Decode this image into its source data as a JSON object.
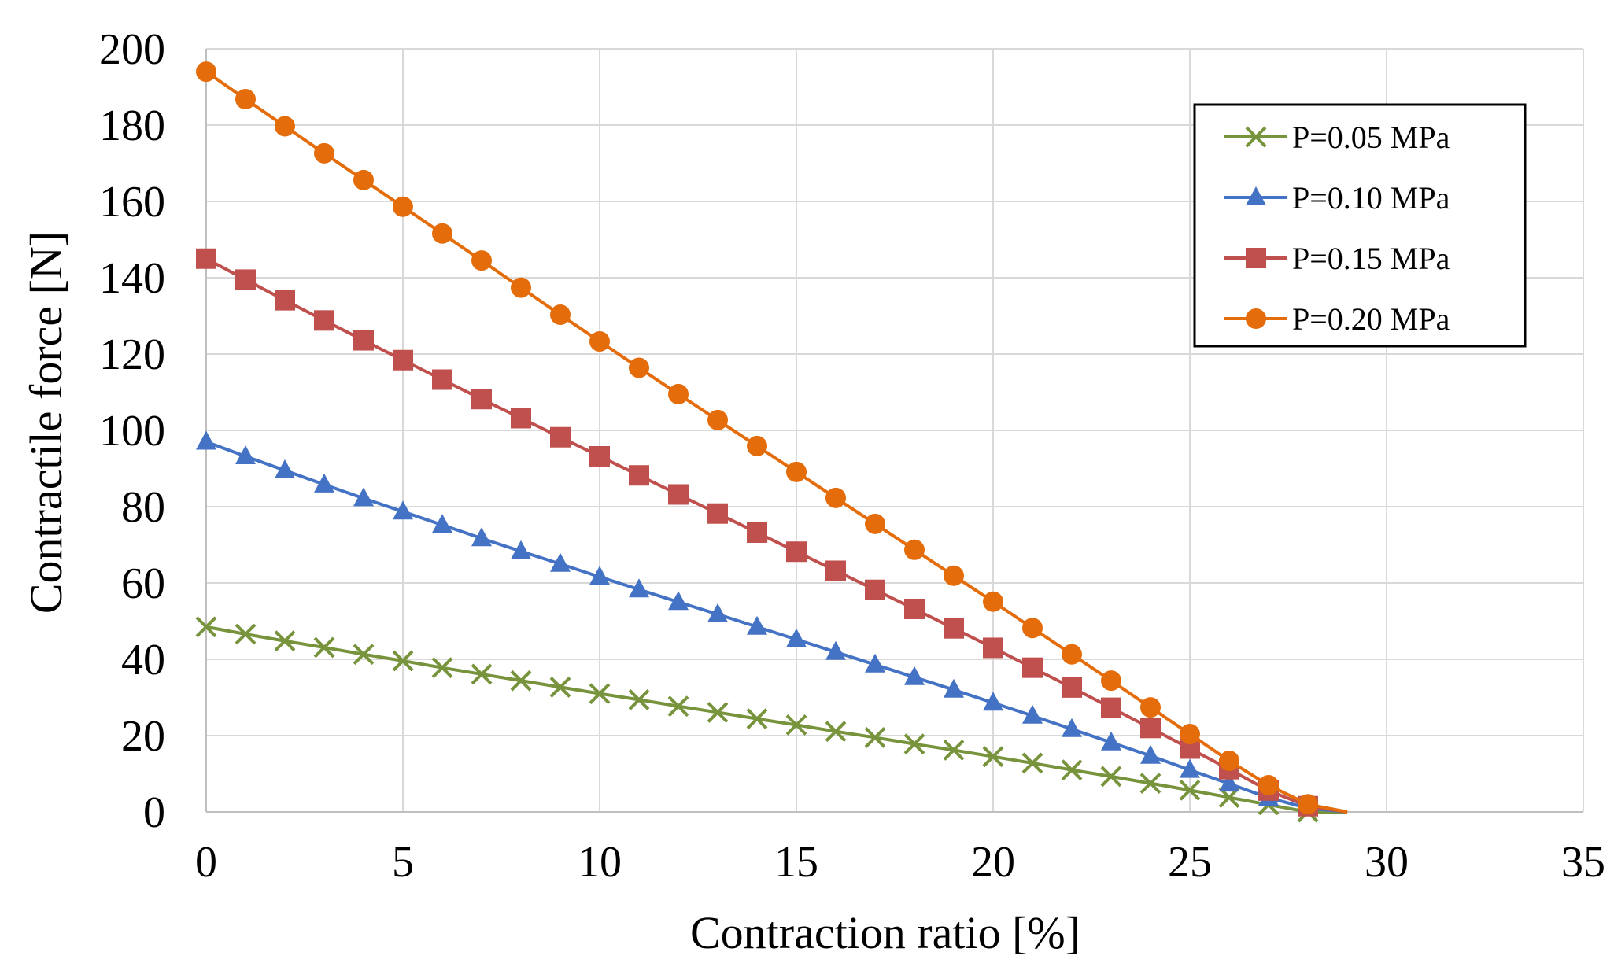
{
  "chart_data": {
    "type": "line",
    "title": "",
    "xlabel": "Contraction ratio [%]",
    "ylabel": "Contractile force [N]",
    "xlim": [
      0,
      35
    ],
    "ylim": [
      0,
      200
    ],
    "xticks": [
      0,
      5,
      10,
      15,
      20,
      25,
      30,
      35
    ],
    "yticks": [
      0,
      20,
      40,
      60,
      80,
      100,
      120,
      140,
      160,
      180,
      200
    ],
    "grid": true,
    "legend_position": "top-right",
    "series": [
      {
        "name": "P=0.05 MPa",
        "color": "#77933c",
        "marker": "x",
        "x": [
          0,
          1,
          2,
          3,
          4,
          5,
          6,
          7,
          8,
          9,
          10,
          11,
          12,
          13,
          14,
          15,
          16,
          17,
          18,
          19,
          20,
          21,
          22,
          23,
          24,
          25,
          26,
          27,
          28,
          29
        ],
        "values": [
          48.5,
          46.6,
          44.8,
          43.1,
          41.3,
          39.6,
          37.8,
          36.1,
          34.4,
          32.7,
          31.0,
          29.4,
          27.7,
          26.1,
          24.4,
          22.8,
          21.1,
          19.5,
          17.8,
          16.2,
          14.5,
          12.8,
          11.0,
          9.3,
          7.5,
          5.7,
          3.8,
          1.9,
          0.0,
          0.0
        ]
      },
      {
        "name": "P=0.10 MPa",
        "color": "#4472c4",
        "marker": "triangle",
        "x": [
          0,
          1,
          2,
          3,
          4,
          5,
          6,
          7,
          8,
          9,
          10,
          11,
          12,
          13,
          14,
          15,
          16,
          17,
          18,
          19,
          20,
          21,
          22,
          23,
          24,
          25,
          26,
          27,
          28,
          29
        ],
        "values": [
          97.0,
          93.2,
          89.5,
          85.8,
          82.2,
          78.7,
          75.2,
          71.7,
          68.3,
          65.0,
          61.6,
          58.3,
          55.0,
          51.8,
          48.5,
          45.2,
          41.9,
          38.6,
          35.3,
          32.0,
          28.6,
          25.2,
          21.7,
          18.2,
          14.7,
          11.0,
          7.4,
          3.7,
          1.0,
          0.0
        ]
      },
      {
        "name": "P=0.15 MPa",
        "color": "#c0504d",
        "marker": "square",
        "x": [
          0,
          1,
          2,
          3,
          4,
          5,
          6,
          7,
          8,
          9,
          10,
          11,
          12,
          13,
          14,
          15,
          16,
          17,
          18,
          19,
          20,
          21,
          22,
          23,
          24,
          25,
          26,
          27,
          28,
          29
        ],
        "values": [
          145.0,
          139.5,
          134.1,
          128.8,
          123.6,
          118.4,
          113.3,
          108.2,
          103.2,
          98.2,
          93.2,
          88.2,
          83.2,
          78.2,
          73.2,
          68.2,
          63.2,
          58.2,
          53.2,
          48.1,
          43.0,
          37.8,
          32.6,
          27.3,
          22.0,
          16.6,
          11.2,
          5.6,
          1.5,
          0.0
        ]
      },
      {
        "name": "P=0.20 MPa",
        "color": "#e46c0a",
        "marker": "circle",
        "x": [
          0,
          1,
          2,
          3,
          4,
          5,
          6,
          7,
          8,
          9,
          10,
          11,
          12,
          13,
          14,
          15,
          16,
          17,
          18,
          19,
          20,
          21,
          22,
          23,
          24,
          25,
          26,
          27,
          28,
          29
        ],
        "values": [
          194.0,
          186.8,
          179.7,
          172.6,
          165.6,
          158.6,
          151.6,
          144.5,
          137.4,
          130.3,
          123.3,
          116.4,
          109.5,
          102.7,
          95.9,
          89.1,
          82.3,
          75.5,
          68.7,
          61.9,
          55.1,
          48.2,
          41.3,
          34.4,
          27.4,
          20.4,
          13.4,
          7.0,
          2.0,
          0.0
        ]
      }
    ]
  }
}
